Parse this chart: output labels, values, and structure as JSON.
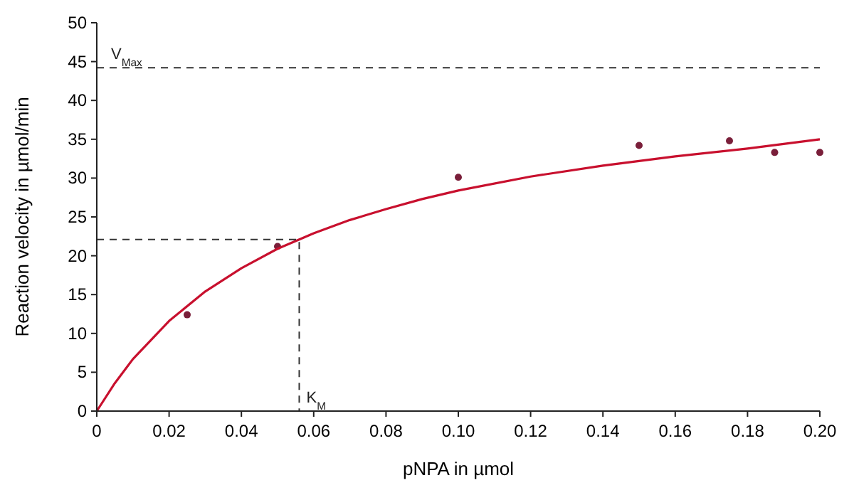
{
  "chart_data": {
    "type": "scatter",
    "xlabel": "pNPA in µmol",
    "ylabel": "Reaction velocity in µmol/min",
    "xlim": [
      0,
      0.2
    ],
    "ylim": [
      0,
      50
    ],
    "xticks": [
      0,
      0.02,
      0.04,
      0.06,
      0.08,
      {
        "value": 0.1,
        "label": "0.10"
      },
      0.12,
      0.14,
      0.16,
      0.18,
      {
        "value": 0.2,
        "label": "0.20"
      }
    ],
    "yticks": [
      0,
      5,
      10,
      15,
      20,
      25,
      30,
      35,
      40,
      45,
      50
    ],
    "grid": false,
    "marker": "circle",
    "series": [
      {
        "color": "#7a1f3a",
        "x": [
          0.025,
          0.05,
          0.1,
          0.15,
          0.175,
          0.1875,
          0.2
        ],
        "values": [
          12.4,
          21.2,
          30.1,
          34.2,
          34.8,
          33.3,
          33.3
        ]
      },
      {
        "type": "line",
        "color": "#c8102e",
        "marker": "none",
        "line_style": "solid",
        "x": [
          0,
          0.005,
          0.01,
          0.02,
          0.03,
          0.04,
          0.05,
          0.056,
          0.06,
          0.07,
          0.08,
          0.09,
          0.1,
          0.12,
          0.14,
          0.16,
          0.18,
          0.2
        ],
        "values": [
          0,
          3.6,
          6.7,
          11.6,
          15.4,
          18.4,
          20.9,
          22.1,
          22.9,
          24.6,
          26.0,
          27.3,
          28.4,
          30.2,
          31.6,
          32.8,
          33.8,
          35.0
        ]
      },
      {
        "type": "line",
        "color": "#333333",
        "marker": "none",
        "line_style": "dashed",
        "x": [
          0,
          0.056,
          0.056
        ],
        "values": [
          22.1,
          22.1,
          0
        ]
      }
    ],
    "ref_lines": [
      {
        "axis": "y",
        "value": 44.2,
        "label": "V$_{Max}$",
        "color": "#333333",
        "line_style": "dashed"
      }
    ],
    "annotations": [
      {
        "text": "K$_{M}$",
        "x": 0.056,
        "y": 0
      }
    ]
  }
}
